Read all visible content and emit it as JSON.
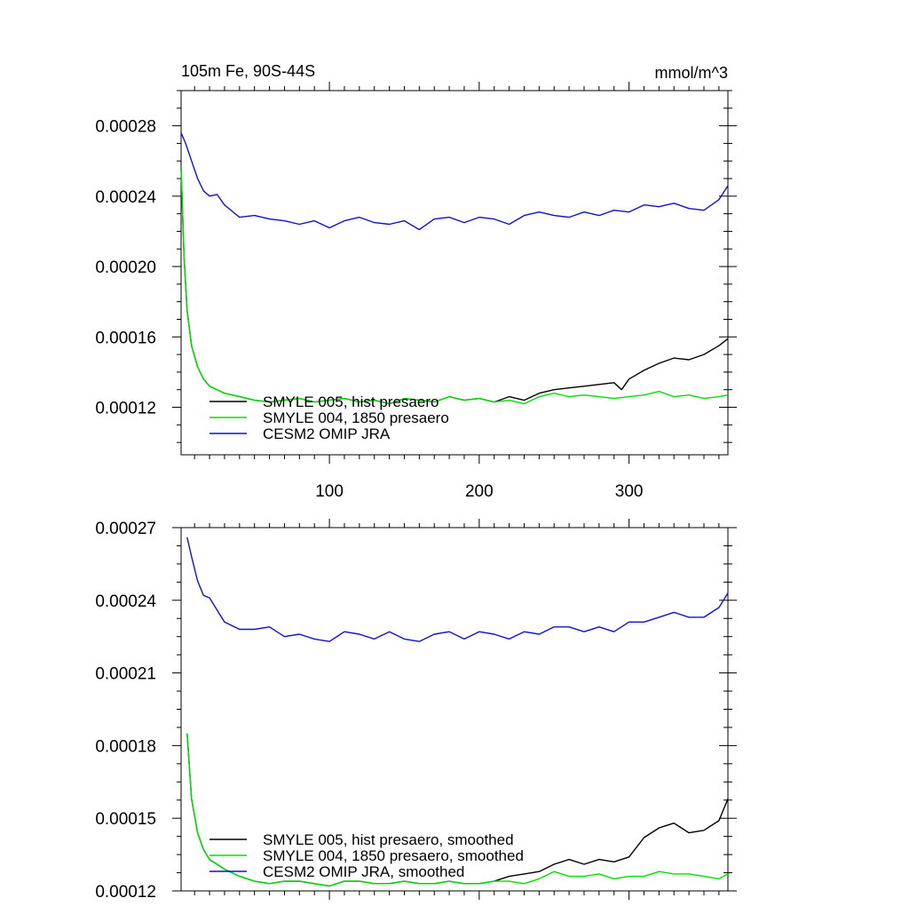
{
  "chart_data": [
    {
      "type": "line",
      "title": "105m Fe, 90S-44S",
      "units": "mmol/m^3",
      "xlim": [
        1,
        366
      ],
      "ylim": [
        9.3e-05,
        0.0003
      ],
      "xticks": [
        100,
        200,
        300
      ],
      "xtick_labels": [
        "100",
        "200",
        "300"
      ],
      "yticks": [
        0.00012,
        0.00016,
        0.0002,
        0.00024,
        0.00028
      ],
      "ytick_labels": [
        "0.00012",
        "0.00016",
        "0.00020",
        "0.00024",
        "0.00028"
      ],
      "legend": {
        "position": "bottom-left"
      },
      "series": [
        {
          "name": "SMYLE 005, hist presaero",
          "color": "#000000",
          "x": [
            1,
            3,
            5,
            8,
            12,
            16,
            20,
            25,
            30,
            40,
            50,
            60,
            70,
            80,
            90,
            100,
            110,
            120,
            130,
            140,
            150,
            160,
            170,
            180,
            190,
            200,
            210,
            220,
            230,
            240,
            250,
            260,
            270,
            280,
            290,
            295,
            300,
            310,
            320,
            330,
            340,
            350,
            360,
            366
          ],
          "y": [
            0.000256,
            0.000205,
            0.000175,
            0.000155,
            0.000143,
            0.000136,
            0.000132,
            0.00013,
            0.000128,
            0.000126,
            0.000124,
            0.000123,
            0.000124,
            0.000125,
            0.000123,
            0.000124,
            0.000125,
            0.000123,
            0.000124,
            0.000122,
            0.000125,
            0.000124,
            0.000123,
            0.000126,
            0.000124,
            0.000125,
            0.000123,
            0.000126,
            0.000124,
            0.000128,
            0.00013,
            0.000131,
            0.000132,
            0.000133,
            0.000134,
            0.00013,
            0.000136,
            0.000141,
            0.000145,
            0.000148,
            0.000147,
            0.00015,
            0.000155,
            0.000159
          ]
        },
        {
          "name": "SMYLE 004, 1850 presaero",
          "color": "#00e000",
          "x": [
            1,
            3,
            5,
            8,
            12,
            16,
            20,
            25,
            30,
            40,
            50,
            60,
            70,
            80,
            90,
            100,
            110,
            120,
            130,
            140,
            150,
            160,
            170,
            180,
            190,
            200,
            210,
            220,
            230,
            240,
            250,
            260,
            270,
            280,
            290,
            300,
            310,
            320,
            330,
            340,
            350,
            360,
            366
          ],
          "y": [
            0.000256,
            0.000205,
            0.000175,
            0.000155,
            0.000143,
            0.000136,
            0.000132,
            0.00013,
            0.000128,
            0.000126,
            0.000124,
            0.000123,
            0.000124,
            0.000125,
            0.000123,
            0.000124,
            0.000125,
            0.000123,
            0.000124,
            0.000122,
            0.000125,
            0.000124,
            0.000123,
            0.000126,
            0.000124,
            0.000125,
            0.000123,
            0.000124,
            0.000122,
            0.000126,
            0.000128,
            0.000126,
            0.000127,
            0.000126,
            0.000125,
            0.000126,
            0.000127,
            0.000129,
            0.000126,
            0.000127,
            0.000125,
            0.000126,
            0.000127
          ]
        },
        {
          "name": "CESM2 OMIP JRA",
          "color": "#1010d0",
          "x": [
            1,
            4,
            8,
            12,
            16,
            20,
            25,
            30,
            40,
            50,
            60,
            70,
            80,
            90,
            100,
            110,
            120,
            130,
            140,
            150,
            160,
            170,
            180,
            190,
            200,
            210,
            220,
            230,
            240,
            250,
            260,
            270,
            280,
            290,
            300,
            310,
            320,
            330,
            340,
            350,
            360,
            366
          ],
          "y": [
            0.000276,
            0.00027,
            0.00026,
            0.00025,
            0.000243,
            0.00024,
            0.000241,
            0.000235,
            0.000228,
            0.000229,
            0.000227,
            0.000226,
            0.000224,
            0.000226,
            0.000222,
            0.000226,
            0.000228,
            0.000225,
            0.000224,
            0.000226,
            0.000221,
            0.000227,
            0.000228,
            0.000225,
            0.000228,
            0.000227,
            0.000224,
            0.000229,
            0.000231,
            0.000229,
            0.000228,
            0.000231,
            0.000229,
            0.000232,
            0.000231,
            0.000235,
            0.000234,
            0.000236,
            0.000233,
            0.000232,
            0.000238,
            0.000246
          ]
        }
      ]
    },
    {
      "type": "line",
      "xlim": [
        1,
        366
      ],
      "ylim": [
        0.00012,
        0.00027
      ],
      "xticks": [
        100,
        200,
        300
      ],
      "yticks": [
        0.00012,
        0.00015,
        0.00018,
        0.00021,
        0.00024,
        0.00027
      ],
      "ytick_labels": [
        "0.00012",
        "0.00015",
        "0.00018",
        "0.00021",
        "0.00024",
        "0.00027"
      ],
      "legend": {
        "position": "bottom-left"
      },
      "series": [
        {
          "name": "SMYLE 005, hist presaero, smoothed",
          "color": "#000000",
          "x": [
            5,
            8,
            12,
            16,
            20,
            25,
            30,
            40,
            50,
            60,
            70,
            80,
            90,
            100,
            110,
            120,
            130,
            140,
            150,
            160,
            170,
            180,
            190,
            200,
            210,
            220,
            230,
            240,
            250,
            260,
            270,
            280,
            290,
            300,
            310,
            320,
            330,
            340,
            350,
            360,
            366
          ],
          "y": [
            0.000185,
            0.000158,
            0.000144,
            0.000137,
            0.000133,
            0.000131,
            0.000129,
            0.000126,
            0.000124,
            0.000123,
            0.000124,
            0.000124,
            0.000123,
            0.000122,
            0.000124,
            0.000124,
            0.000123,
            0.000123,
            0.000124,
            0.000123,
            0.000123,
            0.000124,
            0.000123,
            0.000123,
            0.000124,
            0.000126,
            0.000127,
            0.000128,
            0.000131,
            0.000133,
            0.000131,
            0.000133,
            0.000132,
            0.000134,
            0.000142,
            0.000146,
            0.000148,
            0.000144,
            0.000145,
            0.000149,
            0.000158
          ]
        },
        {
          "name": "SMYLE 004, 1850 presaero, smoothed",
          "color": "#00e000",
          "x": [
            5,
            8,
            12,
            16,
            20,
            25,
            30,
            40,
            50,
            60,
            70,
            80,
            90,
            100,
            110,
            120,
            130,
            140,
            150,
            160,
            170,
            180,
            190,
            200,
            210,
            220,
            230,
            240,
            250,
            260,
            270,
            280,
            290,
            300,
            310,
            320,
            330,
            340,
            350,
            360,
            366
          ],
          "y": [
            0.000185,
            0.000158,
            0.000144,
            0.000137,
            0.000133,
            0.000131,
            0.000129,
            0.000126,
            0.000124,
            0.000123,
            0.000124,
            0.000124,
            0.000123,
            0.000122,
            0.000124,
            0.000124,
            0.000123,
            0.000123,
            0.000124,
            0.000123,
            0.000123,
            0.000124,
            0.000123,
            0.000123,
            0.000124,
            0.000124,
            0.000123,
            0.000125,
            0.000128,
            0.000126,
            0.000126,
            0.000127,
            0.000125,
            0.000126,
            0.000126,
            0.000128,
            0.000127,
            0.000127,
            0.000126,
            0.000125,
            0.000127
          ]
        },
        {
          "name": "CESM2 OMIP JRA, smoothed",
          "color": "#1010d0",
          "x": [
            5,
            8,
            12,
            16,
            20,
            25,
            30,
            40,
            50,
            60,
            70,
            80,
            90,
            100,
            110,
            120,
            130,
            140,
            150,
            160,
            170,
            180,
            190,
            200,
            210,
            220,
            230,
            240,
            250,
            260,
            270,
            280,
            290,
            300,
            310,
            320,
            330,
            340,
            350,
            360,
            366
          ],
          "y": [
            0.000266,
            0.000258,
            0.000248,
            0.000242,
            0.000241,
            0.000236,
            0.000231,
            0.000228,
            0.000228,
            0.000229,
            0.000225,
            0.000226,
            0.000224,
            0.000223,
            0.000227,
            0.000226,
            0.000224,
            0.000227,
            0.000224,
            0.000223,
            0.000226,
            0.000227,
            0.000224,
            0.000227,
            0.000226,
            0.000224,
            0.000227,
            0.000226,
            0.000229,
            0.000229,
            0.000227,
            0.000229,
            0.000227,
            0.000231,
            0.000231,
            0.000233,
            0.000235,
            0.000233,
            0.000233,
            0.000237,
            0.000243
          ]
        }
      ]
    }
  ]
}
